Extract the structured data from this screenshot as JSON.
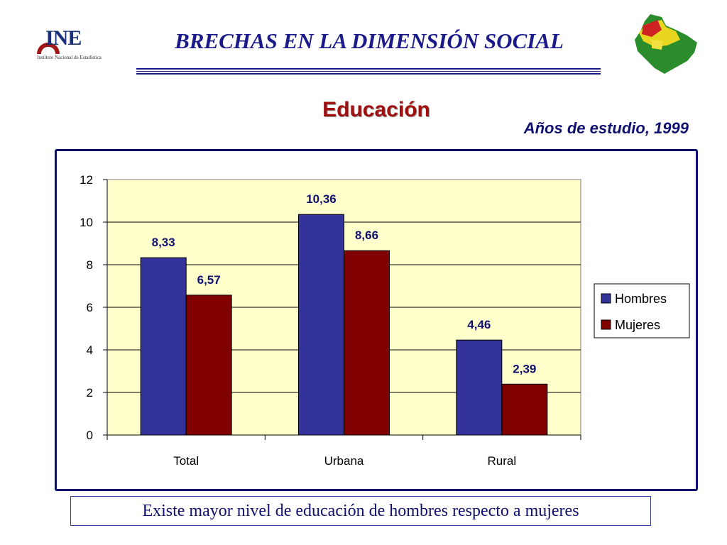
{
  "header": {
    "logo_text": "INE",
    "logo_subtitle": "Instituto Nacional de Estadística",
    "title": "BRECHAS EN LA DIMENSIÓN SOCIAL"
  },
  "section_title": "Educación",
  "chart_subtitle": "Años de estudio, 1999",
  "conclusion": "Existe mayor nivel de educación de hombres respecto a mujeres",
  "colors": {
    "title_blue": "#1a1a8a",
    "section_red": "#a01010",
    "hombres": "#333399",
    "mujeres": "#800000",
    "plot_bg": "#ffffcc",
    "label_blue": "#101070"
  },
  "chart_data": {
    "type": "bar",
    "title": "",
    "xlabel": "",
    "ylabel": "",
    "categories": [
      "Total",
      "Urbana",
      "Rural"
    ],
    "series": [
      {
        "name": "Hombres",
        "values": [
          8.33,
          10.36,
          4.46
        ],
        "labels": [
          "8,33",
          "10,36",
          "4,46"
        ],
        "color": "#333399"
      },
      {
        "name": "Mujeres",
        "values": [
          6.57,
          8.66,
          2.39
        ],
        "labels": [
          "6,57",
          "8,66",
          "2,39"
        ],
        "color": "#800000"
      }
    ],
    "ylim": [
      0,
      12
    ],
    "yticks": [
      0,
      2,
      4,
      6,
      8,
      10,
      12
    ],
    "grid": true,
    "legend": "right"
  }
}
